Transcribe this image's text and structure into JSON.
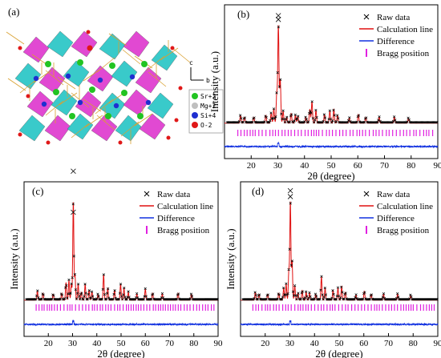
{
  "figure": {
    "panel_a": {
      "label": "(a)",
      "legend": [
        {
          "label": "Sr+2",
          "color": "#22c422"
        },
        {
          "label": "Mg+2",
          "color": "#bfbfbf"
        },
        {
          "label": "Si+4",
          "color": "#1f2fd0"
        },
        {
          "label": "O-2",
          "color": "#e01818"
        }
      ],
      "axes_labels": {
        "c": "c",
        "b": "b"
      },
      "colors": {
        "tetra_cyan": "#2fc8c8",
        "tetra_magenta": "#e040d0",
        "bond": "#d9a030"
      }
    }
  },
  "chart_data": [
    {
      "panel": "(b)",
      "type": "line",
      "xlabel": "2θ (degree)",
      "ylabel": "Intensity (a.u.)",
      "xlim": [
        10,
        90
      ],
      "xticks": [
        20,
        30,
        40,
        50,
        60,
        70,
        80,
        90
      ],
      "legend": [
        "Raw data",
        "Calculation line",
        "Difference",
        "Bragg position"
      ],
      "peaks": [
        [
          16,
          0.08
        ],
        [
          17.5,
          0.06
        ],
        [
          21,
          0.06
        ],
        [
          25.5,
          0.08
        ],
        [
          27.5,
          0.1
        ],
        [
          28.5,
          0.14
        ],
        [
          29.6,
          0.3
        ],
        [
          30.2,
          1.0
        ],
        [
          30.9,
          0.45
        ],
        [
          32,
          0.12
        ],
        [
          33.3,
          0.06
        ],
        [
          35,
          0.1
        ],
        [
          36.6,
          0.08
        ],
        [
          37.5,
          0.07
        ],
        [
          40.5,
          0.06
        ],
        [
          42,
          0.14
        ],
        [
          42.8,
          0.22
        ],
        [
          44.3,
          0.13
        ],
        [
          47.5,
          0.09
        ],
        [
          49.5,
          0.12
        ],
        [
          51,
          0.14
        ],
        [
          52.4,
          0.08
        ],
        [
          56.8,
          0.05
        ],
        [
          60.2,
          0.09
        ],
        [
          63,
          0.06
        ],
        [
          68,
          0.06
        ],
        [
          73.7,
          0.06
        ],
        [
          79,
          0.05
        ]
      ],
      "outliers": [
        [
          30.2,
          1.12
        ],
        [
          30.2,
          1.08
        ]
      ]
    },
    {
      "panel": "(c)",
      "type": "line",
      "xlabel": "2θ (degree)",
      "ylabel": "Intensity (a.u.)",
      "xlim": [
        10,
        90
      ],
      "xticks": [
        20,
        30,
        40,
        50,
        60,
        70,
        80,
        90
      ],
      "legend": [
        "Raw data",
        "Calculation line",
        "Difference",
        "Bragg position"
      ],
      "peaks": [
        [
          15.5,
          0.09
        ],
        [
          17.8,
          0.07
        ],
        [
          22,
          0.06
        ],
        [
          25.5,
          0.07
        ],
        [
          27.3,
          0.18
        ],
        [
          28.5,
          0.2
        ],
        [
          29.5,
          0.16
        ],
        [
          30.3,
          1.0
        ],
        [
          31,
          0.25
        ],
        [
          32.3,
          0.16
        ],
        [
          33.6,
          0.08
        ],
        [
          35.2,
          0.16
        ],
        [
          36.8,
          0.1
        ],
        [
          38,
          0.08
        ],
        [
          40.5,
          0.06
        ],
        [
          42.8,
          0.26
        ],
        [
          44.5,
          0.12
        ],
        [
          47.3,
          0.1
        ],
        [
          49.8,
          0.16
        ],
        [
          51.2,
          0.12
        ],
        [
          53,
          0.08
        ],
        [
          56.5,
          0.06
        ],
        [
          60,
          0.11
        ],
        [
          63,
          0.07
        ],
        [
          67,
          0.06
        ],
        [
          73.5,
          0.07
        ],
        [
          79,
          0.06
        ]
      ],
      "outliers": [
        [
          30.3,
          1.33
        ],
        [
          30.3,
          0.91
        ]
      ]
    },
    {
      "panel": "(d)",
      "type": "line",
      "xlabel": "2θ (degree)",
      "ylabel": "Intensity (a.u.)",
      "xlim": [
        10,
        90
      ],
      "xticks": [
        20,
        30,
        40,
        50,
        60,
        70,
        80,
        90
      ],
      "legend": [
        "Raw data",
        "Calculation line",
        "Difference",
        "Bragg position"
      ],
      "peaks": [
        [
          16,
          0.08
        ],
        [
          17.5,
          0.06
        ],
        [
          21,
          0.06
        ],
        [
          25.5,
          0.07
        ],
        [
          27.5,
          0.12
        ],
        [
          28.5,
          0.16
        ],
        [
          29.6,
          0.3
        ],
        [
          30.2,
          1.0
        ],
        [
          30.9,
          0.4
        ],
        [
          32,
          0.14
        ],
        [
          33.3,
          0.07
        ],
        [
          35,
          0.1
        ],
        [
          36.6,
          0.08
        ],
        [
          38,
          0.07
        ],
        [
          40.5,
          0.06
        ],
        [
          42.8,
          0.24
        ],
        [
          44.3,
          0.12
        ],
        [
          47.5,
          0.1
        ],
        [
          49.5,
          0.12
        ],
        [
          51,
          0.14
        ],
        [
          52.5,
          0.08
        ],
        [
          56.8,
          0.05
        ],
        [
          60.2,
          0.09
        ],
        [
          63,
          0.06
        ],
        [
          68,
          0.06
        ],
        [
          73.7,
          0.06
        ],
        [
          79,
          0.05
        ]
      ],
      "outliers": [
        [
          30.2,
          1.13
        ],
        [
          30.2,
          1.07
        ]
      ]
    }
  ]
}
